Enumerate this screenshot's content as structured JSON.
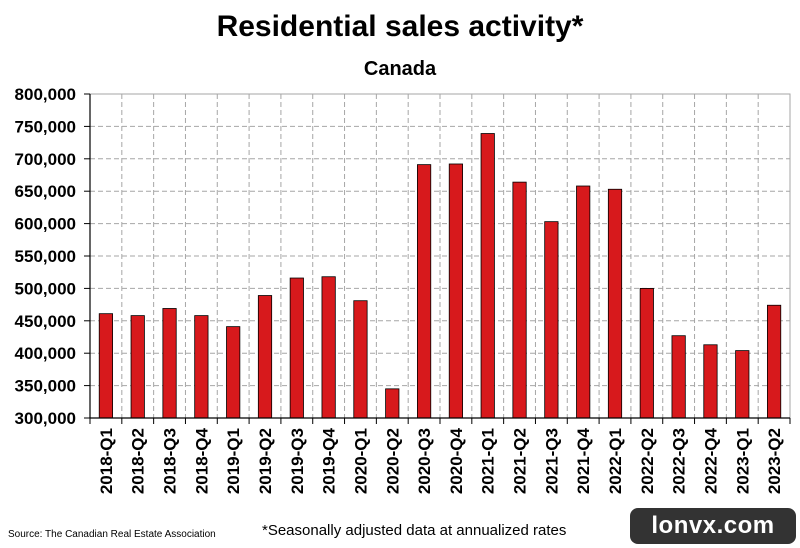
{
  "chart_data": {
    "type": "bar",
    "title": "Residential sales activity*",
    "subtitle": "Canada",
    "categories": [
      "2018-Q1",
      "2018-Q2",
      "2018-Q3",
      "2018-Q4",
      "2019-Q1",
      "2019-Q2",
      "2019-Q3",
      "2019-Q4",
      "2020-Q1",
      "2020-Q2",
      "2020-Q3",
      "2020-Q4",
      "2021-Q1",
      "2021-Q2",
      "2021-Q3",
      "2021-Q4",
      "2022-Q1",
      "2022-Q2",
      "2022-Q3",
      "2022-Q4",
      "2023-Q1",
      "2023-Q2"
    ],
    "values": [
      461000,
      458000,
      469000,
      458000,
      441000,
      489000,
      516000,
      518000,
      481000,
      345000,
      691000,
      692000,
      739000,
      664000,
      603000,
      658000,
      653000,
      500000,
      427000,
      413000,
      404000,
      474000
    ],
    "ylim": [
      300000,
      800000
    ],
    "yticks": [
      300000,
      350000,
      400000,
      450000,
      500000,
      550000,
      600000,
      650000,
      700000,
      750000,
      800000
    ],
    "ytick_labels": [
      "300,000",
      "350,000",
      "400,000",
      "450,000",
      "500,000",
      "550,000",
      "600,000",
      "650,000",
      "700,000",
      "750,000",
      "800,000"
    ],
    "grid": true,
    "bar_color": "#d7191c"
  },
  "source_text": "Source: The Canadian Real Estate Association",
  "footnote": "*Seasonally adjusted data at annualized rates",
  "watermark": "lonvx.com"
}
